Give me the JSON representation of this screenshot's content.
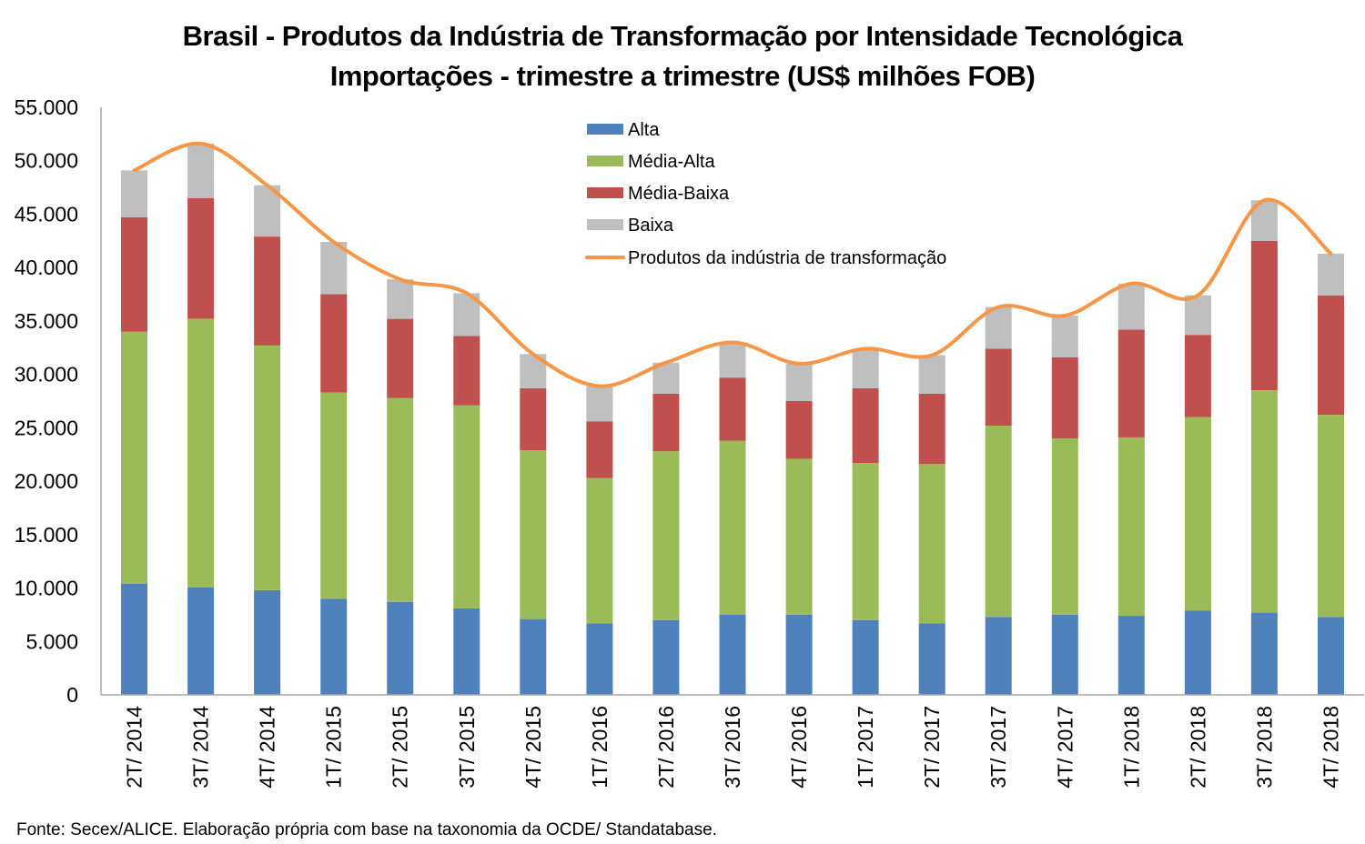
{
  "chart_data": {
    "type": "bar",
    "stacked": true,
    "title": "Brasil - Produtos da Indústria de Transformação por Intensidade Tecnológica",
    "subtitle": "Importações - trimestre a trimestre (US$ milhões FOB)",
    "xlabel": "",
    "ylabel": "",
    "ylim": [
      0,
      55000
    ],
    "yticks": [
      0,
      5000,
      10000,
      15000,
      20000,
      25000,
      30000,
      35000,
      40000,
      45000,
      50000,
      55000
    ],
    "ytick_labels": [
      "0",
      "5.000",
      "10.000",
      "15.000",
      "20.000",
      "25.000",
      "30.000",
      "35.000",
      "40.000",
      "45.000",
      "50.000",
      "55.000"
    ],
    "grid": false,
    "legend_position": "top-center",
    "categories": [
      "2T/ 2014",
      "3T/ 2014",
      "4T/ 2014",
      "1T/ 2015",
      "2T/ 2015",
      "3T/ 2015",
      "4T/ 2015",
      "1T/ 2016",
      "2T/ 2016",
      "3T/ 2016",
      "4T/ 2016",
      "1T/ 2017",
      "2T/ 2017",
      "3T/ 2017",
      "4T/ 2017",
      "1T/ 2018",
      "2T/ 2018",
      "3T/ 2018",
      "4T/ 2018"
    ],
    "series": [
      {
        "name": "Alta",
        "type": "bar",
        "color": "#4f81bd",
        "values": [
          10400,
          10050,
          9800,
          9000,
          8700,
          8100,
          7100,
          6700,
          7000,
          7500,
          7500,
          7000,
          6700,
          7300,
          7500,
          7400,
          7900,
          7700,
          7300
        ]
      },
      {
        "name": "Média-Alta",
        "type": "bar",
        "color": "#9bbb59",
        "values": [
          23600,
          25150,
          22900,
          19300,
          19100,
          19000,
          15800,
          13600,
          15800,
          16300,
          14600,
          14700,
          14900,
          17900,
          16500,
          16700,
          18100,
          20800,
          18900
        ]
      },
      {
        "name": "Média-Baixa",
        "type": "bar",
        "color": "#c0504d",
        "values": [
          10700,
          11300,
          10200,
          9200,
          7400,
          6500,
          5800,
          5300,
          5400,
          5900,
          5400,
          7000,
          6600,
          7200,
          7600,
          10100,
          7700,
          14000,
          11200
        ]
      },
      {
        "name": "Baixa",
        "type": "bar",
        "color": "#bfbfbf",
        "values": [
          4400,
          5100,
          4800,
          4900,
          3700,
          4000,
          3200,
          3300,
          2900,
          3300,
          3500,
          3700,
          3600,
          3900,
          3900,
          4300,
          3700,
          3800,
          3900
        ]
      },
      {
        "name": "Produtos da indústria de transformação",
        "type": "line",
        "color": "#f79646",
        "values": [
          49100,
          51600,
          47700,
          42400,
          38900,
          37600,
          31900,
          28900,
          31100,
          33000,
          31000,
          32400,
          31800,
          36300,
          35500,
          38500,
          37400,
          46300,
          41300
        ]
      }
    ]
  },
  "source_note": "Fonte: Secex/ALICE. Elaboração própria com base na taxonomia da OCDE/ Standatabase."
}
